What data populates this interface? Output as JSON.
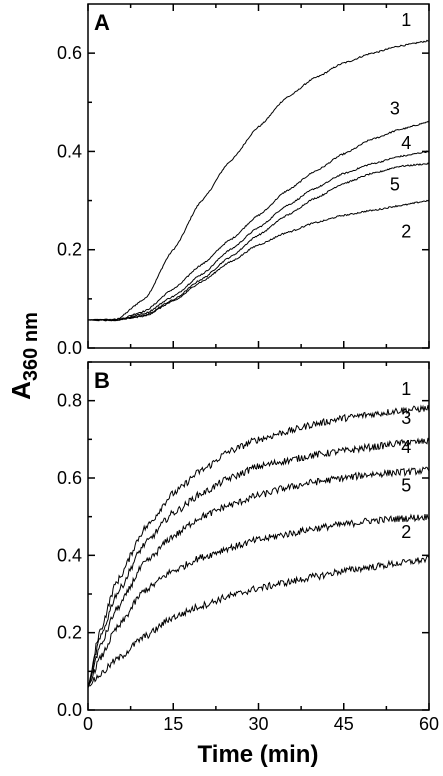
{
  "figure": {
    "xlabel": "Time (min)",
    "ylabel_main": "A",
    "ylabel_sub": "360 nm"
  },
  "chart_data": [
    {
      "panel": "A",
      "type": "line",
      "xlim": [
        0,
        60
      ],
      "ylim": [
        0,
        0.7
      ],
      "xticks": [
        0,
        15,
        30,
        45,
        60
      ],
      "yticks": [
        0.0,
        0.2,
        0.4,
        0.6
      ],
      "ytick_labels": [
        "0.0",
        "0.2",
        "0.4",
        "0.6"
      ],
      "grid": false,
      "noise": 0.0015,
      "x": [
        0,
        5,
        10,
        15,
        20,
        25,
        30,
        35,
        40,
        45,
        50,
        55,
        60
      ],
      "series": [
        {
          "name": "1",
          "values": [
            0.057,
            0.058,
            0.1,
            0.2,
            0.3,
            0.38,
            0.45,
            0.51,
            0.55,
            0.58,
            0.6,
            0.615,
            0.625
          ]
        },
        {
          "name": "3",
          "values": [
            0.057,
            0.057,
            0.075,
            0.12,
            0.17,
            0.22,
            0.27,
            0.32,
            0.36,
            0.395,
            0.425,
            0.445,
            0.46
          ]
        },
        {
          "name": "4",
          "values": [
            0.057,
            0.057,
            0.07,
            0.105,
            0.15,
            0.2,
            0.245,
            0.29,
            0.325,
            0.355,
            0.375,
            0.39,
            0.4
          ]
        },
        {
          "name": "5",
          "values": [
            0.057,
            0.057,
            0.066,
            0.098,
            0.14,
            0.185,
            0.23,
            0.27,
            0.305,
            0.335,
            0.355,
            0.37,
            0.375
          ]
        },
        {
          "name": "2",
          "values": [
            0.057,
            0.057,
            0.065,
            0.095,
            0.135,
            0.175,
            0.21,
            0.235,
            0.255,
            0.27,
            0.28,
            0.29,
            0.3
          ]
        }
      ],
      "curve_labels": [
        {
          "text": "1",
          "x": 56,
          "y": 0.655
        },
        {
          "text": "3",
          "x": 54,
          "y": 0.475
        },
        {
          "text": "4",
          "x": 56,
          "y": 0.405
        },
        {
          "text": "5",
          "x": 54,
          "y": 0.32
        },
        {
          "text": "2",
          "x": 56,
          "y": 0.225
        }
      ]
    },
    {
      "panel": "B",
      "type": "line",
      "xlim": [
        0,
        60
      ],
      "ylim": [
        0,
        0.9
      ],
      "xticks": [
        0,
        15,
        30,
        45,
        60
      ],
      "xtick_labels": [
        "0",
        "15",
        "30",
        "45",
        "60"
      ],
      "yticks": [
        0.0,
        0.2,
        0.4,
        0.6,
        0.8
      ],
      "ytick_labels": [
        "0.0",
        "0.2",
        "0.4",
        "0.6",
        "0.8"
      ],
      "grid": false,
      "noise": 0.009,
      "x": [
        0,
        2,
        5,
        10,
        15,
        20,
        25,
        30,
        35,
        40,
        45,
        50,
        55,
        60
      ],
      "series": [
        {
          "name": "1",
          "values": [
            0.06,
            0.2,
            0.33,
            0.47,
            0.56,
            0.62,
            0.67,
            0.7,
            0.72,
            0.74,
            0.755,
            0.765,
            0.775,
            0.78
          ]
        },
        {
          "name": "3",
          "values": [
            0.06,
            0.18,
            0.3,
            0.43,
            0.51,
            0.56,
            0.6,
            0.63,
            0.645,
            0.66,
            0.67,
            0.68,
            0.69,
            0.695
          ]
        },
        {
          "name": "4",
          "values": [
            0.06,
            0.16,
            0.26,
            0.38,
            0.45,
            0.5,
            0.53,
            0.555,
            0.575,
            0.59,
            0.6,
            0.61,
            0.615,
            0.62
          ]
        },
        {
          "name": "5",
          "values": [
            0.06,
            0.13,
            0.21,
            0.31,
            0.36,
            0.395,
            0.42,
            0.44,
            0.455,
            0.47,
            0.48,
            0.49,
            0.495,
            0.5
          ]
        },
        {
          "name": "2",
          "values": [
            0.06,
            0.09,
            0.13,
            0.19,
            0.24,
            0.27,
            0.295,
            0.315,
            0.33,
            0.345,
            0.36,
            0.37,
            0.38,
            0.39
          ]
        }
      ],
      "curve_labels": [
        {
          "text": "1",
          "x": 56,
          "y": 0.815
        },
        {
          "text": "3",
          "x": 56,
          "y": 0.74
        },
        {
          "text": "4",
          "x": 56,
          "y": 0.665
        },
        {
          "text": "5",
          "x": 56,
          "y": 0.565
        },
        {
          "text": "2",
          "x": 56,
          "y": 0.445
        }
      ]
    }
  ]
}
